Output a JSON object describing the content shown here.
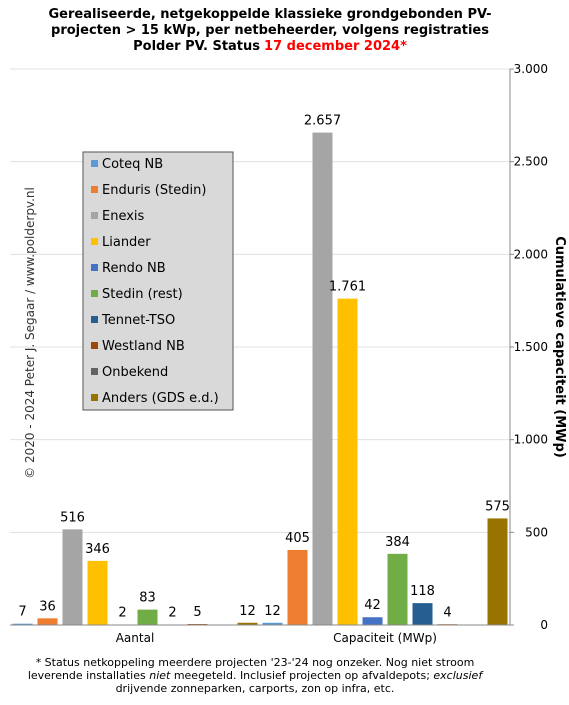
{
  "chart_data": {
    "type": "bar",
    "title_lines": [
      "Gerealiseerde, netgekoppelde klassieke grondgebonden PV-",
      "projecten > 15 kWp, per netbeheerder, volgens registraties",
      "Polder PV. Status"
    ],
    "title_date": "17 december 2024*",
    "title_date_color": "#ff0000",
    "y_axis_label": "Cumulatieve capaciteit (MWp)",
    "copyright": "© 2020 - 2024 Peter J. Segaar / www.polderpv.nl",
    "footnote_lines": [
      [
        {
          "text": "* Status netkoppeling meerdere projecten '23-'24 nog onzeker. Nog niet stroom",
          "italic": false
        }
      ],
      [
        {
          "text": "leverende installaties ",
          "italic": false
        },
        {
          "text": "niet",
          "italic": true
        },
        {
          "text": " meegeteld. Inclusief projecten op afvaldepots; ",
          "italic": false
        },
        {
          "text": "exclusief",
          "italic": true
        }
      ],
      [
        {
          "text": "drijvende zonneparken, carports, zon op infra, etc.",
          "italic": false
        }
      ]
    ],
    "categories": [
      "Aantal",
      "Capaciteit (MWp)"
    ],
    "series": [
      {
        "name": "Coteq NB",
        "color": "#5b9bd5",
        "values": [
          7,
          12
        ]
      },
      {
        "name": "Enduris (Stedin)",
        "color": "#ed7d31",
        "values": [
          36,
          405
        ]
      },
      {
        "name": "Enexis",
        "color": "#a5a5a5",
        "values": [
          516,
          2657
        ],
        "value_labels": [
          "516",
          "2.657"
        ]
      },
      {
        "name": "Liander",
        "color": "#ffc000",
        "values": [
          346,
          1761
        ],
        "value_labels": [
          "346",
          "1.761"
        ]
      },
      {
        "name": "Rendo NB",
        "color": "#4472c4",
        "values": [
          2,
          42
        ]
      },
      {
        "name": "Stedin (rest)",
        "color": "#70ad47",
        "values": [
          83,
          384
        ]
      },
      {
        "name": "Tennet-TSO",
        "color": "#255e91",
        "values": [
          2,
          118
        ]
      },
      {
        "name": "Westland NB",
        "color": "#9e480e",
        "values": [
          5,
          4
        ]
      },
      {
        "name": "Onbekend",
        "color": "#636363",
        "values": [
          null,
          null
        ]
      },
      {
        "name": "Anders (GDS e.d.)",
        "color": "#997300",
        "values": [
          12,
          575
        ]
      }
    ],
    "ylim": [
      0,
      3000
    ],
    "yticks": [
      0,
      500,
      {
        "value": 1000,
        "label": "1.000"
      },
      {
        "value": 1500,
        "label": "1.500"
      },
      {
        "value": 2000,
        "label": "2.000"
      },
      {
        "value": 2500,
        "label": "2.500"
      },
      {
        "value": 3000,
        "label": "3.000"
      }
    ],
    "grid": true,
    "legend": "upper left"
  }
}
